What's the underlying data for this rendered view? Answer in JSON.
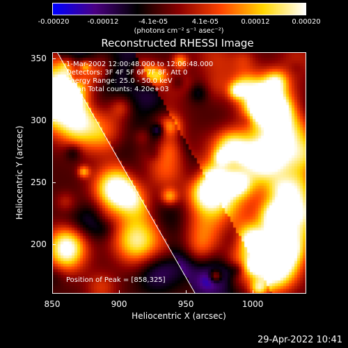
{
  "chart_data": {
    "type": "heatmap",
    "title": "Reconstructed RHESSI Image",
    "xlabel": "Heliocentric X (arcsec)",
    "ylabel": "Heliocentric Y (arcsec)",
    "xlim": [
      850,
      1040
    ],
    "ylim": [
      160,
      355
    ],
    "x_ticks": [
      "850",
      "900",
      "950",
      "1000"
    ],
    "x_tick_values": [
      850,
      900,
      950,
      1000
    ],
    "y_ticks": [
      "200",
      "250",
      "300",
      "350"
    ],
    "y_tick_values": [
      200,
      250,
      300,
      350
    ],
    "colorbar": {
      "ticks": [
        "-0.00020",
        "-0.00012",
        "-4.1e-05",
        "4.1e-05",
        "0.00012",
        "0.00020"
      ],
      "tick_values": [
        -0.0002,
        -0.00012,
        -4.1e-05,
        4.1e-05,
        0.00012,
        0.0002
      ],
      "range": [
        -0.0002,
        0.0002
      ],
      "units_label": "(photons cm⁻² s⁻¹ asec⁻²)",
      "colors": [
        "#0000ff",
        "#4b0082",
        "#000000",
        "#8b0000",
        "#ff4500",
        "#ffd700",
        "#ffffff"
      ]
    },
    "annotations": {
      "time_range": "1-Mar-2002 12:00:48.000 to 12:06:48.000",
      "detectors": "Detectors: 3F 4F 5F 6F 7F 8F, Att 0",
      "energy_range": "Energy Range: 25.0 - 50.0 keV",
      "method_counts": "Clean    Total counts: 4.20e+03",
      "peak_position": "Position of Peak = [858,325]"
    },
    "peak": [
      858,
      325
    ],
    "limb_line": [
      [
        850,
        362
      ],
      [
        957,
        160
      ]
    ]
  },
  "footer": {
    "timestamp": "29-Apr-2022 10:41"
  }
}
